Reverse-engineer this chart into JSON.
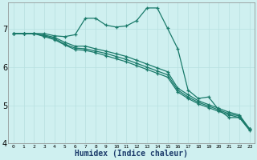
{
  "xlabel": "Humidex (Indice chaleur)",
  "bg_color": "#cff0f0",
  "grid_color": "#b8e0e0",
  "line_color": "#1a7a6a",
  "xlim": [
    -0.5,
    23.5
  ],
  "ylim": [
    4.0,
    7.7
  ],
  "yticks": [
    4,
    5,
    6,
    7
  ],
  "xticks": [
    0,
    1,
    2,
    3,
    4,
    5,
    6,
    7,
    8,
    9,
    10,
    11,
    12,
    13,
    14,
    15,
    16,
    17,
    18,
    19,
    20,
    21,
    22,
    23
  ],
  "series": [
    [
      6.88,
      6.88,
      6.88,
      6.88,
      6.82,
      6.8,
      6.85,
      7.28,
      7.28,
      7.1,
      7.05,
      7.08,
      7.22,
      7.55,
      7.55,
      7.02,
      6.48,
      5.4,
      5.18,
      5.22,
      4.88,
      4.68,
      4.68,
      4.34
    ],
    [
      6.88,
      6.88,
      6.88,
      6.84,
      6.78,
      6.65,
      6.55,
      6.55,
      6.48,
      6.42,
      6.35,
      6.28,
      6.18,
      6.08,
      5.98,
      5.88,
      5.45,
      5.28,
      5.12,
      5.02,
      4.92,
      4.82,
      4.75,
      4.38
    ],
    [
      6.88,
      6.88,
      6.88,
      6.82,
      6.75,
      6.6,
      6.5,
      6.48,
      6.42,
      6.36,
      6.28,
      6.2,
      6.1,
      6.0,
      5.9,
      5.8,
      5.4,
      5.22,
      5.08,
      4.98,
      4.88,
      4.78,
      4.72,
      4.38
    ],
    [
      6.88,
      6.88,
      6.88,
      6.8,
      6.72,
      6.58,
      6.46,
      6.44,
      6.38,
      6.3,
      6.22,
      6.14,
      6.04,
      5.94,
      5.84,
      5.74,
      5.35,
      5.18,
      5.04,
      4.94,
      4.84,
      4.75,
      4.68,
      4.38
    ]
  ]
}
